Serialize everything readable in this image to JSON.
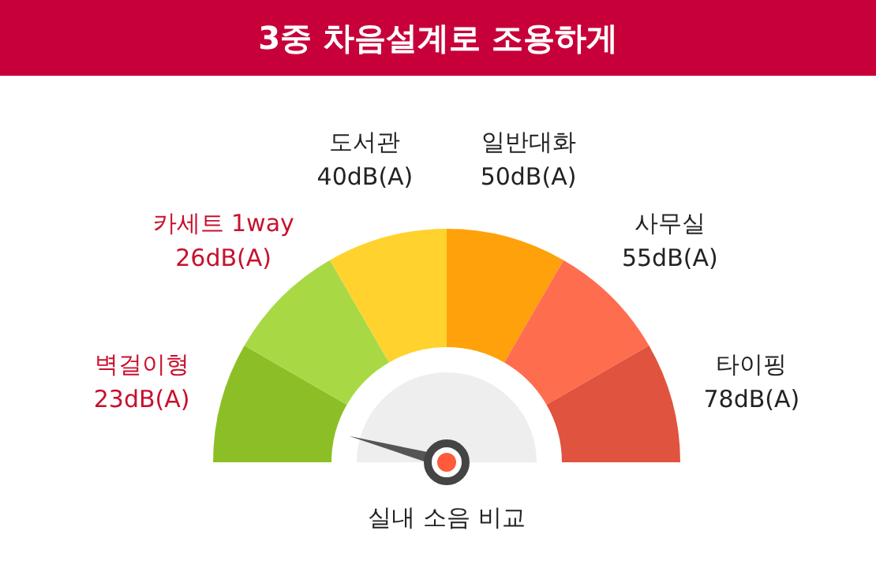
{
  "chart_data": {
    "type": "donut",
    "title": "3중 차음설계로 조용하게",
    "categories": [
      "벽걸이형\n23dB(A)",
      "카세트 1way\n26dB(A)",
      "도서관\n40dB(A)",
      "일반대화\n50dB(A)",
      "사무실\n55dB(A)",
      "타이핑\n78dB(A)"
    ],
    "values": [
      16.67,
      16.67,
      16.67,
      16.67,
      16.67,
      16.67
    ],
    "colors": [
      "#8cbf26",
      "#a8d945",
      "#ffd22e",
      "#ffa10a",
      "#ff6d4f",
      "#e0533f"
    ],
    "needle": "벽걸이형\n23dB(A)",
    "annotations": [
      "실내 소음 비교"
    ]
  }
}
